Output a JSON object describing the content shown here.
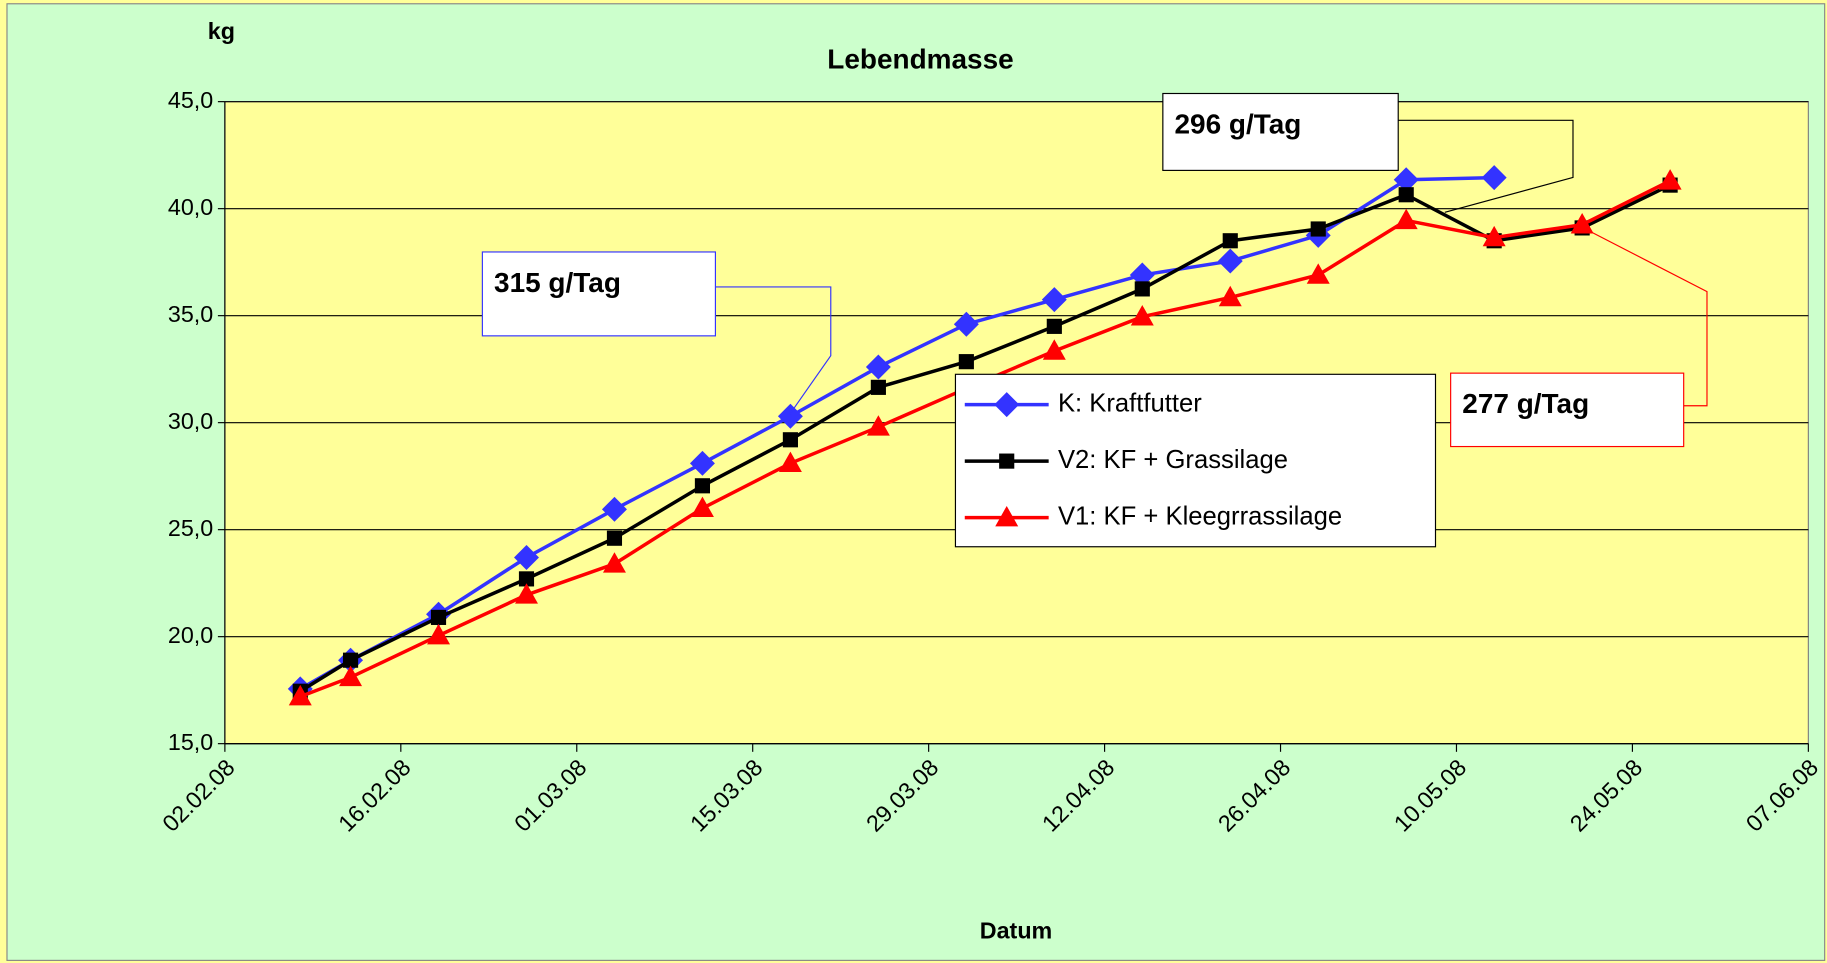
{
  "chart_data": {
    "type": "line",
    "title": "Lebendmasse",
    "y_label": "kg",
    "x_label": "Datum",
    "xlim": [
      "02.02.08",
      "07.06.08"
    ],
    "xticks": [
      "02.02.08",
      "16.02.08",
      "01.03.08",
      "15.03.08",
      "29.03.08",
      "12.04.08",
      "26.04.08",
      "10.05.08",
      "24.05.08",
      "07.06.08"
    ],
    "ylim": [
      15,
      45
    ],
    "yticks": [
      {
        "value": 15,
        "label": "15,0"
      },
      {
        "value": 20,
        "label": "20,0"
      },
      {
        "value": 25,
        "label": "25,0"
      },
      {
        "value": 30,
        "label": "30,0"
      },
      {
        "value": 35,
        "label": "35,0"
      },
      {
        "value": 40,
        "label": "40,0"
      },
      {
        "value": 45,
        "label": "45,0"
      }
    ],
    "grid": true,
    "series": [
      {
        "name": "K: Kraftfutter",
        "color": "#3333ff",
        "marker": "diamond",
        "x": [
          "08.02.08",
          "12.02.08",
          "19.02.08",
          "26.02.08",
          "04.03.08",
          "11.03.08",
          "18.03.08",
          "25.03.08",
          "01.04.08",
          "08.04.08",
          "15.04.08",
          "22.04.08",
          "29.04.08",
          "06.05.08",
          "13.05.08"
        ],
        "values": [
          17.56,
          18.9,
          21.05,
          23.7,
          25.95,
          28.1,
          30.3,
          32.6,
          34.6,
          35.75,
          36.9,
          37.55,
          38.75,
          41.35,
          41.45
        ]
      },
      {
        "name": "V2: KF + Grassilage",
        "color": "#000000",
        "marker": "square",
        "x": [
          "08.02.08",
          "12.02.08",
          "19.02.08",
          "26.02.08",
          "04.03.08",
          "11.03.08",
          "18.03.08",
          "25.03.08",
          "01.04.08",
          "08.04.08",
          "15.04.08",
          "22.04.08",
          "29.04.08",
          "06.05.08",
          "13.05.08",
          "20.05.08",
          "27.05.08"
        ],
        "values": [
          17.45,
          18.9,
          20.9,
          22.7,
          24.6,
          27.05,
          29.2,
          31.65,
          32.85,
          34.5,
          36.25,
          38.5,
          39.05,
          40.65,
          38.5,
          39.1,
          41.1
        ]
      },
      {
        "name": "V1: KF + Kleegrrassilage",
        "color": "#ff0000",
        "marker": "triangle",
        "x": [
          "08.02.08",
          "12.02.08",
          "19.02.08",
          "26.02.08",
          "04.03.08",
          "11.03.08",
          "18.03.08",
          "25.03.08",
          "01.04.08",
          "08.04.08",
          "15.04.08",
          "22.04.08",
          "29.04.08",
          "06.05.08",
          "13.05.08",
          "20.05.08",
          "27.05.08"
        ],
        "values": [
          17.2,
          18.1,
          20.05,
          21.95,
          23.4,
          26.0,
          28.1,
          29.8,
          31.6,
          33.35,
          34.95,
          35.85,
          36.9,
          39.45,
          38.65,
          39.25,
          41.3
        ]
      }
    ],
    "annotations": [
      {
        "text": "315 g/Tag",
        "color": "#3333ff"
      },
      {
        "text": "296 g/Tag",
        "color": "#000000"
      },
      {
        "text": "277 g/Tag",
        "color": "#ff0000"
      }
    ]
  }
}
